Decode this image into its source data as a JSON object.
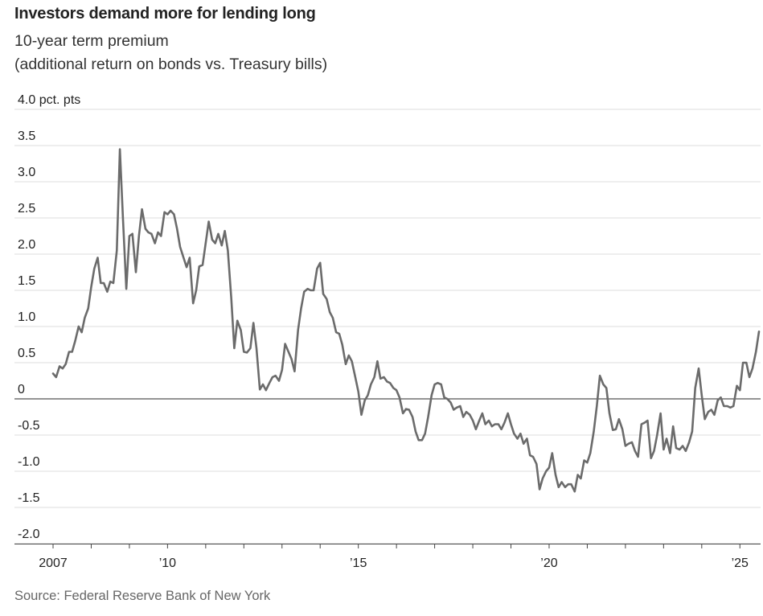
{
  "header": {
    "title": "Investors demand more for lending long",
    "subtitle_line1": "10-year term premium",
    "subtitle_line2": "(additional return on bonds vs. Treasury bills)"
  },
  "source": "Source: Federal Reserve Bank of New York",
  "colors": {
    "line": "#6b6b6b",
    "grid": "#dddddd",
    "zero_line": "#555555",
    "text": "#222222",
    "source": "#666666"
  },
  "chart_data": {
    "type": "line",
    "title": "Investors demand more for lending long",
    "subtitle": "10-year term premium (additional return on bonds vs. Treasury bills)",
    "xlabel": "",
    "ylabel": "pct. pts",
    "ylim": [
      -2.0,
      4.0
    ],
    "xlim": [
      2007.0,
      2025.5
    ],
    "grid": true,
    "y_ticks": [
      {
        "value": 4.0,
        "label": "4.0 pct. pts"
      },
      {
        "value": 3.5,
        "label": "3.5"
      },
      {
        "value": 3.0,
        "label": "3.0"
      },
      {
        "value": 2.5,
        "label": "2.5"
      },
      {
        "value": 2.0,
        "label": "2.0"
      },
      {
        "value": 1.5,
        "label": "1.5"
      },
      {
        "value": 1.0,
        "label": "1.0"
      },
      {
        "value": 0.5,
        "label": "0.5"
      },
      {
        "value": 0,
        "label": "0"
      },
      {
        "value": -0.5,
        "label": "-0.5"
      },
      {
        "value": -1.0,
        "label": "-1.0"
      },
      {
        "value": -1.5,
        "label": "-1.5"
      },
      {
        "value": -2.0,
        "label": "-2.0"
      }
    ],
    "x_ticks": [
      {
        "value": 2007,
        "label": "2007"
      },
      {
        "value": 2008,
        "label": ""
      },
      {
        "value": 2009,
        "label": ""
      },
      {
        "value": 2010,
        "label": "’10"
      },
      {
        "value": 2011,
        "label": ""
      },
      {
        "value": 2012,
        "label": ""
      },
      {
        "value": 2013,
        "label": ""
      },
      {
        "value": 2014,
        "label": ""
      },
      {
        "value": 2015,
        "label": "’15"
      },
      {
        "value": 2016,
        "label": ""
      },
      {
        "value": 2017,
        "label": ""
      },
      {
        "value": 2018,
        "label": ""
      },
      {
        "value": 2019,
        "label": ""
      },
      {
        "value": 2020,
        "label": "’20"
      },
      {
        "value": 2021,
        "label": ""
      },
      {
        "value": 2022,
        "label": ""
      },
      {
        "value": 2023,
        "label": ""
      },
      {
        "value": 2024,
        "label": ""
      },
      {
        "value": 2025,
        "label": "’25"
      }
    ],
    "series": [
      {
        "name": "10-year term premium",
        "points": [
          [
            2007.0,
            0.35
          ],
          [
            2007.08,
            0.3
          ],
          [
            2007.17,
            0.45
          ],
          [
            2007.25,
            0.42
          ],
          [
            2007.33,
            0.48
          ],
          [
            2007.42,
            0.65
          ],
          [
            2007.5,
            0.65
          ],
          [
            2007.58,
            0.8
          ],
          [
            2007.67,
            1.0
          ],
          [
            2007.75,
            0.92
          ],
          [
            2007.83,
            1.12
          ],
          [
            2007.92,
            1.25
          ],
          [
            2008.0,
            1.55
          ],
          [
            2008.08,
            1.8
          ],
          [
            2008.17,
            1.95
          ],
          [
            2008.25,
            1.6
          ],
          [
            2008.33,
            1.6
          ],
          [
            2008.42,
            1.48
          ],
          [
            2008.5,
            1.62
          ],
          [
            2008.58,
            1.6
          ],
          [
            2008.67,
            2.05
          ],
          [
            2008.75,
            3.45
          ],
          [
            2008.83,
            2.5
          ],
          [
            2008.92,
            1.52
          ],
          [
            2009.0,
            2.25
          ],
          [
            2009.08,
            2.28
          ],
          [
            2009.17,
            1.75
          ],
          [
            2009.25,
            2.25
          ],
          [
            2009.33,
            2.62
          ],
          [
            2009.42,
            2.35
          ],
          [
            2009.5,
            2.3
          ],
          [
            2009.58,
            2.28
          ],
          [
            2009.67,
            2.15
          ],
          [
            2009.75,
            2.3
          ],
          [
            2009.83,
            2.25
          ],
          [
            2009.92,
            2.58
          ],
          [
            2010.0,
            2.55
          ],
          [
            2010.08,
            2.6
          ],
          [
            2010.17,
            2.55
          ],
          [
            2010.25,
            2.35
          ],
          [
            2010.33,
            2.1
          ],
          [
            2010.42,
            1.95
          ],
          [
            2010.5,
            1.82
          ],
          [
            2010.58,
            1.95
          ],
          [
            2010.67,
            1.32
          ],
          [
            2010.75,
            1.5
          ],
          [
            2010.83,
            1.83
          ],
          [
            2010.92,
            1.85
          ],
          [
            2011.0,
            2.15
          ],
          [
            2011.08,
            2.45
          ],
          [
            2011.17,
            2.2
          ],
          [
            2011.25,
            2.15
          ],
          [
            2011.33,
            2.28
          ],
          [
            2011.42,
            2.12
          ],
          [
            2011.5,
            2.32
          ],
          [
            2011.58,
            2.05
          ],
          [
            2011.67,
            1.4
          ],
          [
            2011.75,
            0.7
          ],
          [
            2011.83,
            1.08
          ],
          [
            2011.92,
            0.95
          ],
          [
            2012.0,
            0.65
          ],
          [
            2012.08,
            0.64
          ],
          [
            2012.17,
            0.7
          ],
          [
            2012.25,
            1.05
          ],
          [
            2012.33,
            0.7
          ],
          [
            2012.42,
            0.13
          ],
          [
            2012.5,
            0.2
          ],
          [
            2012.58,
            0.12
          ],
          [
            2012.67,
            0.22
          ],
          [
            2012.75,
            0.3
          ],
          [
            2012.83,
            0.32
          ],
          [
            2012.92,
            0.25
          ],
          [
            2013.0,
            0.4
          ],
          [
            2013.08,
            0.76
          ],
          [
            2013.17,
            0.65
          ],
          [
            2013.25,
            0.55
          ],
          [
            2013.33,
            0.38
          ],
          [
            2013.42,
            0.95
          ],
          [
            2013.5,
            1.25
          ],
          [
            2013.58,
            1.48
          ],
          [
            2013.67,
            1.52
          ],
          [
            2013.75,
            1.5
          ],
          [
            2013.83,
            1.5
          ],
          [
            2013.92,
            1.8
          ],
          [
            2014.0,
            1.88
          ],
          [
            2014.08,
            1.45
          ],
          [
            2014.17,
            1.38
          ],
          [
            2014.25,
            1.2
          ],
          [
            2014.33,
            1.12
          ],
          [
            2014.42,
            0.92
          ],
          [
            2014.5,
            0.9
          ],
          [
            2014.58,
            0.75
          ],
          [
            2014.67,
            0.48
          ],
          [
            2014.75,
            0.6
          ],
          [
            2014.83,
            0.52
          ],
          [
            2014.92,
            0.3
          ],
          [
            2015.0,
            0.1
          ],
          [
            2015.08,
            -0.22
          ],
          [
            2015.17,
            -0.02
          ],
          [
            2015.25,
            0.05
          ],
          [
            2015.33,
            0.2
          ],
          [
            2015.42,
            0.3
          ],
          [
            2015.5,
            0.52
          ],
          [
            2015.58,
            0.28
          ],
          [
            2015.67,
            0.3
          ],
          [
            2015.75,
            0.24
          ],
          [
            2015.83,
            0.22
          ],
          [
            2015.92,
            0.15
          ],
          [
            2016.0,
            0.12
          ],
          [
            2016.08,
            0.02
          ],
          [
            2016.17,
            -0.2
          ],
          [
            2016.25,
            -0.14
          ],
          [
            2016.33,
            -0.15
          ],
          [
            2016.42,
            -0.25
          ],
          [
            2016.5,
            -0.45
          ],
          [
            2016.58,
            -0.57
          ],
          [
            2016.67,
            -0.57
          ],
          [
            2016.75,
            -0.48
          ],
          [
            2016.83,
            -0.25
          ],
          [
            2016.92,
            0.05
          ],
          [
            2017.0,
            0.2
          ],
          [
            2017.08,
            0.22
          ],
          [
            2017.17,
            0.2
          ],
          [
            2017.25,
            0.02
          ],
          [
            2017.33,
            0.0
          ],
          [
            2017.42,
            -0.05
          ],
          [
            2017.5,
            -0.15
          ],
          [
            2017.58,
            -0.12
          ],
          [
            2017.67,
            -0.1
          ],
          [
            2017.75,
            -0.25
          ],
          [
            2017.83,
            -0.18
          ],
          [
            2017.92,
            -0.22
          ],
          [
            2018.0,
            -0.3
          ],
          [
            2018.08,
            -0.42
          ],
          [
            2018.17,
            -0.3
          ],
          [
            2018.25,
            -0.2
          ],
          [
            2018.33,
            -0.35
          ],
          [
            2018.42,
            -0.3
          ],
          [
            2018.5,
            -0.38
          ],
          [
            2018.58,
            -0.35
          ],
          [
            2018.67,
            -0.35
          ],
          [
            2018.75,
            -0.42
          ],
          [
            2018.83,
            -0.33
          ],
          [
            2018.92,
            -0.2
          ],
          [
            2019.0,
            -0.35
          ],
          [
            2019.08,
            -0.48
          ],
          [
            2019.17,
            -0.55
          ],
          [
            2019.25,
            -0.48
          ],
          [
            2019.33,
            -0.62
          ],
          [
            2019.42,
            -0.55
          ],
          [
            2019.5,
            -0.78
          ],
          [
            2019.58,
            -0.8
          ],
          [
            2019.67,
            -0.9
          ],
          [
            2019.75,
            -1.25
          ],
          [
            2019.83,
            -1.1
          ],
          [
            2019.92,
            -1.0
          ],
          [
            2020.0,
            -0.95
          ],
          [
            2020.08,
            -0.75
          ],
          [
            2020.17,
            -1.05
          ],
          [
            2020.25,
            -1.22
          ],
          [
            2020.33,
            -1.15
          ],
          [
            2020.42,
            -1.22
          ],
          [
            2020.5,
            -1.18
          ],
          [
            2020.58,
            -1.18
          ],
          [
            2020.67,
            -1.28
          ],
          [
            2020.75,
            -1.05
          ],
          [
            2020.83,
            -1.1
          ],
          [
            2020.92,
            -0.85
          ],
          [
            2021.0,
            -0.88
          ],
          [
            2021.08,
            -0.75
          ],
          [
            2021.17,
            -0.45
          ],
          [
            2021.25,
            -0.1
          ],
          [
            2021.33,
            0.32
          ],
          [
            2021.42,
            0.2
          ],
          [
            2021.5,
            0.15
          ],
          [
            2021.58,
            -0.2
          ],
          [
            2021.67,
            -0.43
          ],
          [
            2021.75,
            -0.42
          ],
          [
            2021.83,
            -0.28
          ],
          [
            2021.92,
            -0.42
          ],
          [
            2022.0,
            -0.65
          ],
          [
            2022.08,
            -0.62
          ],
          [
            2022.17,
            -0.6
          ],
          [
            2022.25,
            -0.72
          ],
          [
            2022.33,
            -0.8
          ],
          [
            2022.42,
            -0.35
          ],
          [
            2022.5,
            -0.33
          ],
          [
            2022.58,
            -0.3
          ],
          [
            2022.67,
            -0.82
          ],
          [
            2022.75,
            -0.72
          ],
          [
            2022.83,
            -0.5
          ],
          [
            2022.92,
            -0.2
          ],
          [
            2023.0,
            -0.7
          ],
          [
            2023.08,
            -0.55
          ],
          [
            2023.17,
            -0.75
          ],
          [
            2023.25,
            -0.38
          ],
          [
            2023.33,
            -0.68
          ],
          [
            2023.42,
            -0.7
          ],
          [
            2023.5,
            -0.65
          ],
          [
            2023.58,
            -0.72
          ],
          [
            2023.67,
            -0.6
          ],
          [
            2023.75,
            -0.45
          ],
          [
            2023.83,
            0.15
          ],
          [
            2023.92,
            0.42
          ],
          [
            2024.0,
            0.05
          ],
          [
            2024.08,
            -0.28
          ],
          [
            2024.17,
            -0.18
          ],
          [
            2024.25,
            -0.15
          ],
          [
            2024.33,
            -0.22
          ],
          [
            2024.42,
            -0.02
          ],
          [
            2024.5,
            0.02
          ],
          [
            2024.58,
            -0.1
          ],
          [
            2024.67,
            -0.1
          ],
          [
            2024.75,
            -0.12
          ],
          [
            2024.83,
            -0.1
          ],
          [
            2024.92,
            0.18
          ],
          [
            2025.0,
            0.12
          ],
          [
            2025.08,
            0.5
          ],
          [
            2025.17,
            0.5
          ],
          [
            2025.25,
            0.3
          ],
          [
            2025.33,
            0.42
          ],
          [
            2025.42,
            0.65
          ],
          [
            2025.5,
            0.93
          ]
        ]
      }
    ]
  }
}
